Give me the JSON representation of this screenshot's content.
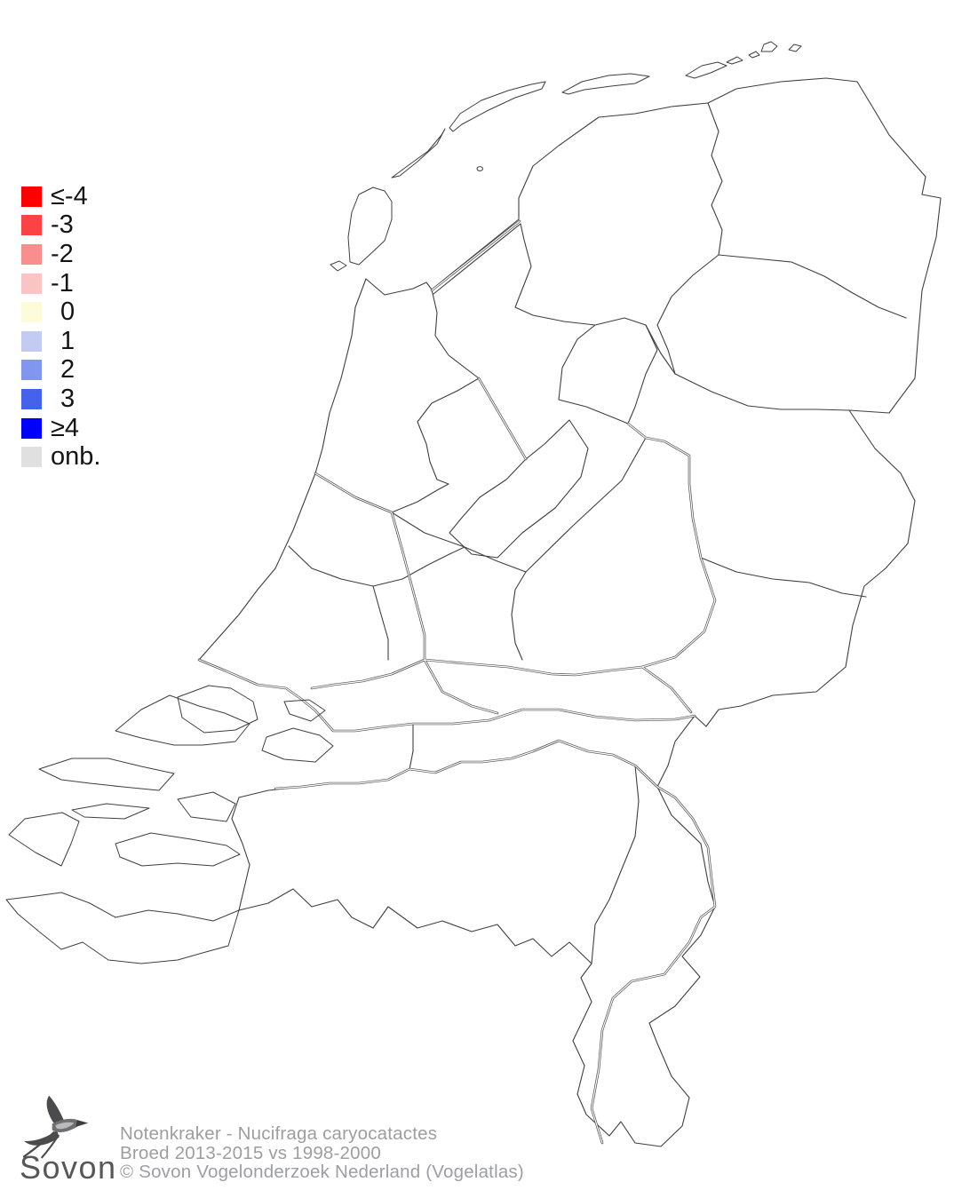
{
  "legend": {
    "items": [
      {
        "label": "≤-4",
        "color": "#ff0000"
      },
      {
        "label": "-3",
        "color": "#fb4343"
      },
      {
        "label": "-2",
        "color": "#f98e8e"
      },
      {
        "label": "-1",
        "color": "#fbc4c4"
      },
      {
        "label": "0",
        "color": "#fcfcdb"
      },
      {
        "label": "1",
        "color": "#c2ccf3"
      },
      {
        "label": "2",
        "color": "#8197ef"
      },
      {
        "label": "3",
        "color": "#4462eb"
      },
      {
        "label": "≥4",
        "color": "#0000ff"
      },
      {
        "label": "onb.",
        "color": "#e0e0e1"
      }
    ]
  },
  "footer": {
    "logo_text": "Sovon",
    "captions": [
      "Notenkraker - Nucifraga caryocatactes",
      "Broed 2013-2015 vs 1998-2000",
      "© Sovon Vogelonderzoek Nederland (Vogelatlas)"
    ]
  },
  "styles": {
    "background": "#ffffff",
    "map_line": "#3f3f3f",
    "river_line": "#4a4a4a",
    "legend_text": "#141414",
    "caption": "#9c9ea1",
    "logo_text": "#57575a"
  }
}
